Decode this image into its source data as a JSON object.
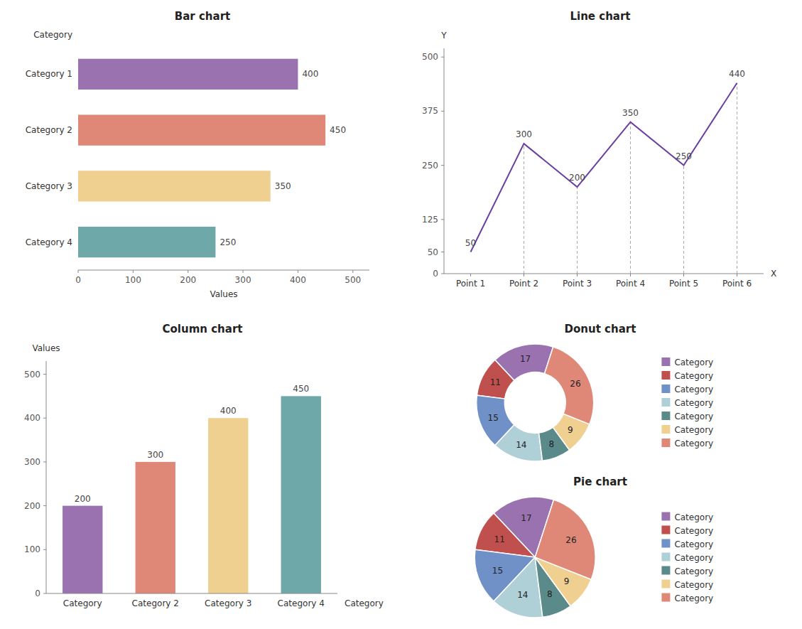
{
  "chart_data": [
    {
      "type": "bar",
      "title": "Bar chart",
      "orientation": "horizontal",
      "categories": [
        "Category 1",
        "Category 2",
        "Category 3",
        "Category 4"
      ],
      "values": [
        400,
        450,
        350,
        250
      ],
      "colors": [
        "#9b72b0",
        "#e08878",
        "#f0d090",
        "#6fa8a8"
      ],
      "xlabel": "Values",
      "ylabel": "Category",
      "xlim": [
        0,
        530
      ],
      "xticks": [
        0,
        100,
        200,
        300,
        400,
        500
      ],
      "grid": false,
      "data_labels": true
    },
    {
      "type": "line",
      "title": "Line chart",
      "categories": [
        "Point 1",
        "Point 2",
        "Point 3",
        "Point 4",
        "Point 5",
        "Point 6"
      ],
      "values": [
        50,
        300,
        200,
        350,
        250,
        440
      ],
      "color": "#6b3fa0",
      "xlabel": "X",
      "ylabel": "Y",
      "ylim": [
        0,
        520
      ],
      "yticks": [
        0,
        50,
        125,
        250,
        375,
        500
      ],
      "grid": false,
      "data_labels": true
    },
    {
      "type": "bar",
      "title": "Column chart",
      "categories": [
        "Category",
        "Category 2",
        "Category 3",
        "Category 4"
      ],
      "values": [
        200,
        300,
        400,
        450
      ],
      "colors": [
        "#9b72b0",
        "#e08878",
        "#f0d090",
        "#6fa8a8"
      ],
      "xlabel": "Category",
      "ylabel": "Values",
      "ylim": [
        0,
        530
      ],
      "yticks": [
        0,
        100,
        200,
        300,
        400,
        500
      ],
      "grid": false,
      "data_labels": true
    },
    {
      "type": "donut",
      "title": "Donut chart",
      "categories": [
        "Category",
        "Category",
        "Category",
        "Category",
        "Category",
        "Category",
        "Category"
      ],
      "values": [
        17,
        11,
        15,
        14,
        8,
        9,
        26
      ],
      "colors": [
        "#9b72b0",
        "#c0504d",
        "#7090c8",
        "#b0d0d8",
        "#5a8a8a",
        "#f0d090",
        "#e08878"
      ],
      "legend": "right",
      "data_labels": true
    },
    {
      "type": "pie",
      "title": "Pie chart",
      "categories": [
        "Category",
        "Category",
        "Category",
        "Category",
        "Category",
        "Category",
        "Category"
      ],
      "values": [
        17,
        11,
        15,
        14,
        8,
        9,
        26
      ],
      "colors": [
        "#9b72b0",
        "#c0504d",
        "#7090c8",
        "#b0d0d8",
        "#5a8a8a",
        "#f0d090",
        "#e08878"
      ],
      "legend": "right",
      "data_labels": true
    }
  ]
}
